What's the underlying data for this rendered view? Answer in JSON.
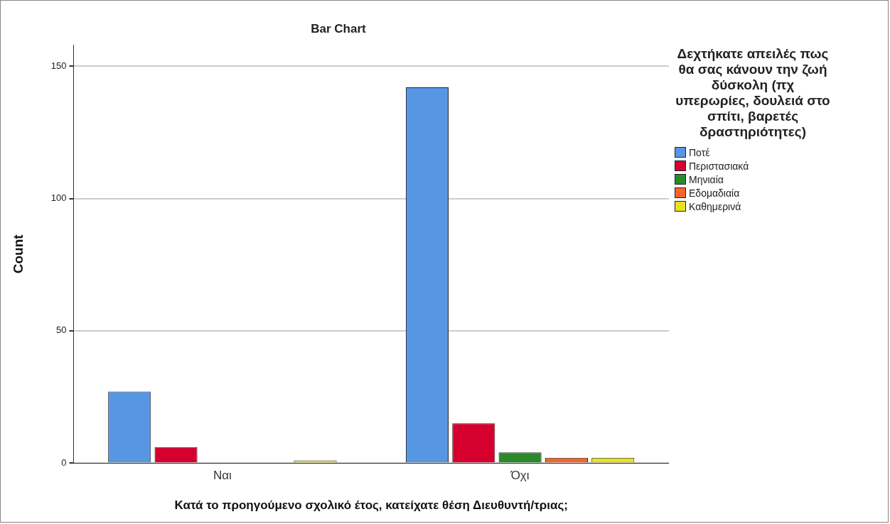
{
  "chart_data": {
    "type": "bar",
    "title": "Bar Chart",
    "xlabel": "Κατά το προηγούμενο σχολικό έτος, κατείχατε θέση Διευθυντή/τριας;",
    "ylabel": "Count",
    "legend_title": "Δεχτήκατε απειλές πως θα σας κάνουν την ζωή δύσκολη (πχ υπερωρίες, δουλειά στο σπίτι, βαρετές δραστηριότητες)",
    "categories": [
      "Ναι",
      "Όχι"
    ],
    "series": [
      {
        "name": "Ποτέ",
        "color": "#5796e3",
        "values": [
          27,
          142
        ]
      },
      {
        "name": "Περιστασιακά",
        "color": "#d6002f",
        "values": [
          6,
          15
        ]
      },
      {
        "name": "Μηνιαία",
        "color": "#2a8a2a",
        "values": [
          null,
          4
        ]
      },
      {
        "name": "Εδομαδιαία",
        "color": "#f7652a",
        "values": [
          null,
          2
        ]
      },
      {
        "name": "Καθημερινά",
        "color": "#e8e21c",
        "values": [
          1,
          2
        ]
      }
    ],
    "ylim": [
      0,
      158
    ],
    "yticks": [
      0,
      50,
      100,
      150
    ],
    "grid": "y",
    "legend": "right"
  }
}
